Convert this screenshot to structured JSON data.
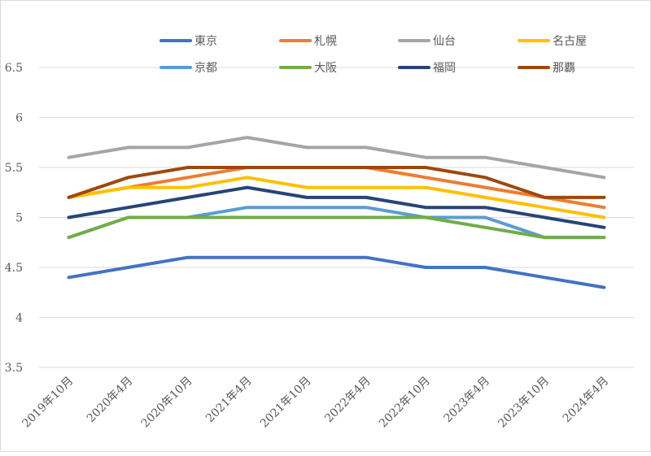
{
  "chart_data": {
    "type": "line",
    "title": "",
    "xlabel": "",
    "ylabel": "",
    "ylim": [
      3.5,
      6.5
    ],
    "yticks": [
      3.5,
      4,
      4.5,
      5,
      5.5,
      6,
      6.5
    ],
    "ytick_labels": [
      "3.5",
      "4",
      "4.5",
      "5",
      "5.5",
      "6",
      "6.5"
    ],
    "grid": "horizontal",
    "legend_position": "top",
    "categories": [
      "2019年10月",
      "2020年4月",
      "2020年10月",
      "2021年4月",
      "2021年10月",
      "2022年4月",
      "2022年10月",
      "2023年4月",
      "2023年10月",
      "2024年4月"
    ],
    "series": [
      {
        "name": "東京",
        "color": "#4472c4",
        "values": [
          4.4,
          4.5,
          4.6,
          4.6,
          4.6,
          4.6,
          4.5,
          4.5,
          4.4,
          4.3
        ]
      },
      {
        "name": "札幌",
        "color": "#ed7d31",
        "values": [
          5.2,
          5.3,
          5.4,
          5.5,
          5.5,
          5.5,
          5.4,
          5.3,
          5.2,
          5.1
        ]
      },
      {
        "name": "仙台",
        "color": "#a5a5a5",
        "values": [
          5.6,
          5.7,
          5.7,
          5.8,
          5.7,
          5.7,
          5.6,
          5.6,
          5.5,
          5.4
        ]
      },
      {
        "name": "名古屋",
        "color": "#ffc000",
        "values": [
          5.2,
          5.3,
          5.3,
          5.4,
          5.3,
          5.3,
          5.3,
          5.2,
          5.1,
          5.0
        ]
      },
      {
        "name": "京都",
        "color": "#5b9bd5",
        "values": [
          4.8,
          5.0,
          5.0,
          5.1,
          5.1,
          5.1,
          5.0,
          5.0,
          4.8,
          4.8
        ]
      },
      {
        "name": "大阪",
        "color": "#70ad47",
        "values": [
          4.8,
          5.0,
          5.0,
          5.0,
          5.0,
          5.0,
          5.0,
          4.9,
          4.8,
          4.8
        ]
      },
      {
        "name": "福岡",
        "color": "#264478",
        "values": [
          5.0,
          5.1,
          5.2,
          5.3,
          5.2,
          5.2,
          5.1,
          5.1,
          5.0,
          4.9
        ]
      },
      {
        "name": "那覇",
        "color": "#9e480e",
        "values": [
          5.2,
          5.4,
          5.5,
          5.5,
          5.5,
          5.5,
          5.5,
          5.4,
          5.2,
          5.2
        ]
      }
    ]
  }
}
